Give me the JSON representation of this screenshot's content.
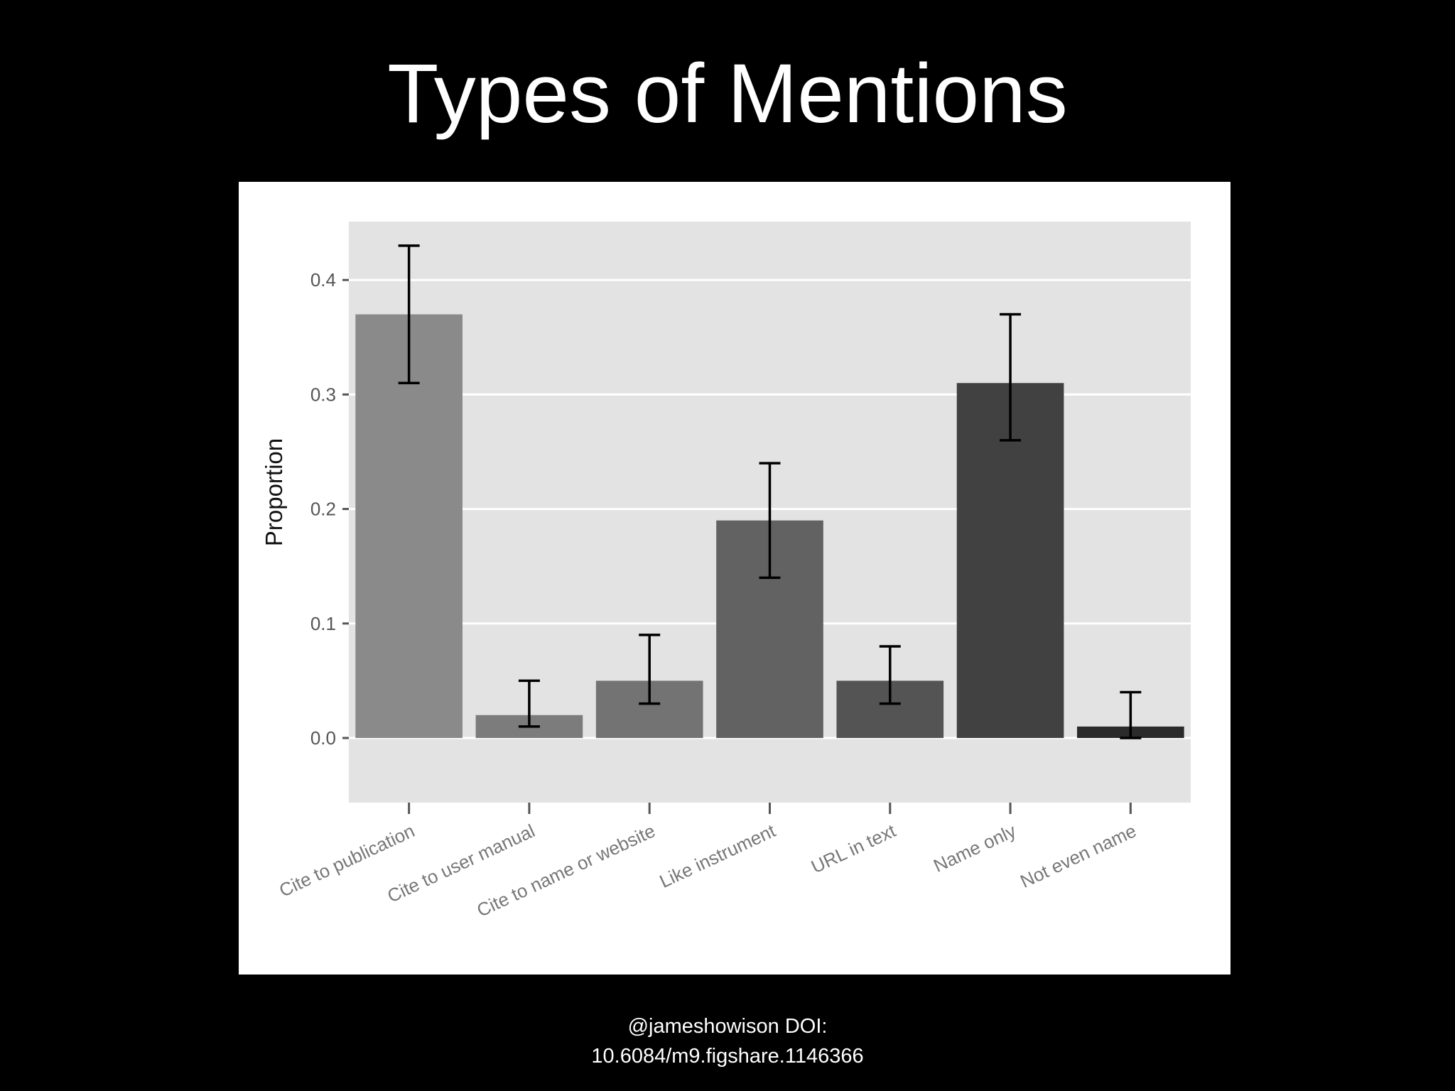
{
  "slide": {
    "title": "Types of Mentions",
    "footer_line1": "@jameshowison  DOI:",
    "footer_line2": "10.6084/m9.figshare.1146366"
  },
  "colors": {
    "background": "#000000",
    "panel": "#e3e3e3",
    "gridline": "#ffffff",
    "error_bar": "#000000"
  },
  "chart_data": {
    "type": "bar",
    "title": "",
    "xlabel": "",
    "ylabel": "Proportion",
    "ylim": [
      0,
      0.45
    ],
    "yticks": [
      0.0,
      0.1,
      0.2,
      0.3,
      0.4
    ],
    "ytick_labels": [
      "0.0",
      "0.1",
      "0.2",
      "0.3",
      "0.4"
    ],
    "grid": true,
    "legend": "none",
    "categories": [
      "Cite to publication",
      "Cite to user manual",
      "Cite to name or website",
      "Like instrument",
      "URL in text",
      "Name only",
      "Not even name"
    ],
    "values": [
      0.37,
      0.02,
      0.05,
      0.19,
      0.05,
      0.31,
      0.01
    ],
    "error_low": [
      0.31,
      0.01,
      0.03,
      0.14,
      0.03,
      0.26,
      0.0
    ],
    "error_high": [
      0.43,
      0.05,
      0.09,
      0.24,
      0.08,
      0.37,
      0.04
    ],
    "bar_colors": [
      "#8a8a8a",
      "#7c7c7c",
      "#737373",
      "#626262",
      "#545454",
      "#414141",
      "#2b2b2b"
    ]
  }
}
